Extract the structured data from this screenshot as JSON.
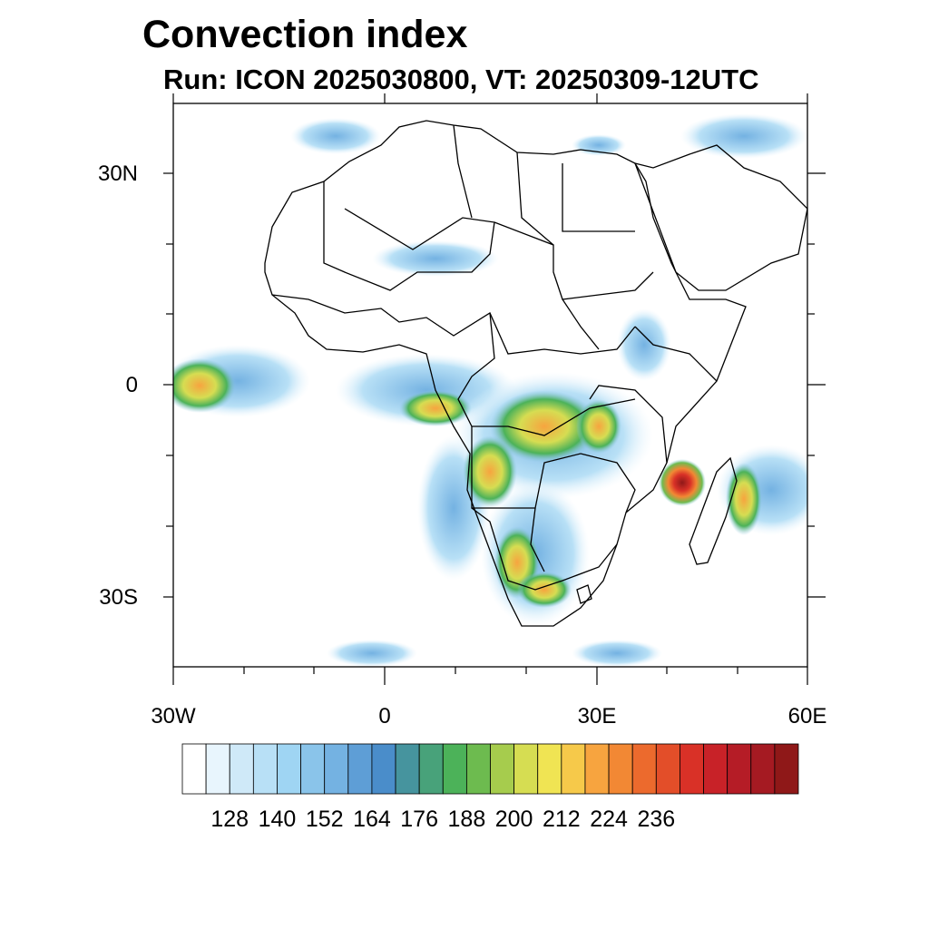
{
  "header": {
    "title": "Convection index",
    "subtitle": "Run: ICON 2025030800,  VT: 20250309-12UTC"
  },
  "map": {
    "lon_range": [
      -30,
      60
    ],
    "lat_range": [
      -40,
      40
    ],
    "lat_labels": [
      "30N",
      "0",
      "30S"
    ],
    "lon_labels": [
      "30W",
      "0",
      "30E",
      "60E"
    ]
  },
  "colorbar": {
    "labels": [
      "128",
      "140",
      "152",
      "164",
      "176",
      "188",
      "200",
      "212",
      "224",
      "236"
    ],
    "colors": [
      "#ffffff",
      "#e8f5fd",
      "#cfe9f8",
      "#b8e0f6",
      "#9fd5f3",
      "#8ac4ea",
      "#74b2e2",
      "#5e9ed6",
      "#4a8dca",
      "#46949e",
      "#48a27a",
      "#4cb259",
      "#6dbb4f",
      "#a6cc4d",
      "#d6dd52",
      "#f0e453",
      "#f6c94a",
      "#f7a43f",
      "#f28834",
      "#ec6a2d",
      "#e34e29",
      "#d93127",
      "#c82228",
      "#b51c26",
      "#a51a22",
      "#8f1818"
    ]
  }
}
